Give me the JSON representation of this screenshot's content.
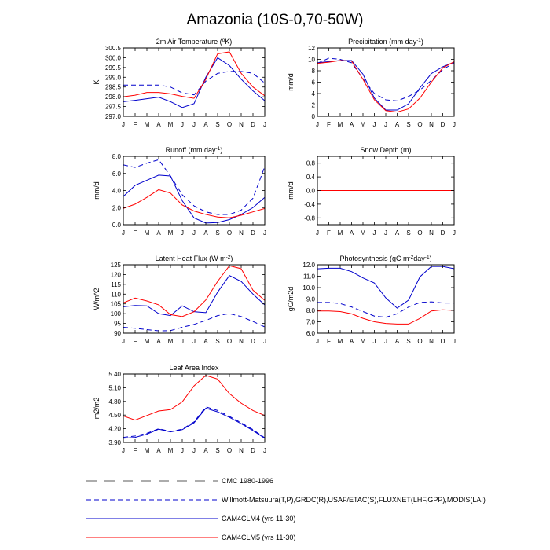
{
  "figure": {
    "title": "Amazonia (10S-0,70-50W)",
    "months": [
      "J",
      "F",
      "M",
      "A",
      "M",
      "J",
      "J",
      "A",
      "S",
      "O",
      "N",
      "D",
      "J"
    ]
  },
  "legend": [
    {
      "label": "CMC 1980-1996",
      "color": "#5a5a5a",
      "dash": "long-dash"
    },
    {
      "label": "Willmott-Matsuura(T,P),GRDC(R),USAF/ETAC(S),FLUXNET(LHF,GPP),MODIS(LAI)",
      "color": "#0000cc",
      "dash": "dash"
    },
    {
      "label": "CAM4CLM4 (yrs 11-30)",
      "color": "#0000cc",
      "dash": "solid"
    },
    {
      "label": "CAM4CLM5 (yrs 11-30)",
      "color": "#ff0000",
      "dash": "solid"
    }
  ],
  "chart_data": [
    {
      "id": "tsa",
      "type": "line",
      "title": "2m Air Temperature (°K)",
      "ylabel": "K",
      "ylim": [
        297.0,
        300.5
      ],
      "yticks": [
        297.0,
        297.5,
        298.0,
        298.5,
        299.0,
        299.5,
        300.0,
        300.5
      ],
      "ytick_labels": [
        "297.0",
        "297.5",
        "298.0",
        "298.5",
        "299.0",
        "299.5",
        "300.0",
        "300.5"
      ],
      "x": [
        "J",
        "F",
        "M",
        "A",
        "M",
        "J",
        "J",
        "A",
        "S",
        "O",
        "N",
        "D",
        "J"
      ],
      "series": [
        {
          "name": "Willmott-Matsuura(T,P),GRDC(R),USAF/ETAC(S),FLUXNET(LHF,GPP),MODIS(LAI)",
          "color": "#0000cc",
          "dash": "dash",
          "values": [
            298.6,
            298.6,
            298.6,
            298.6,
            298.5,
            298.2,
            298.1,
            298.8,
            299.2,
            299.3,
            299.3,
            299.2,
            298.7
          ]
        },
        {
          "name": "CAM4CLM4 (yrs 11-30)",
          "color": "#0000cc",
          "dash": "solid",
          "values": [
            297.75,
            297.82,
            297.9,
            297.98,
            297.75,
            297.45,
            297.65,
            299.0,
            300.0,
            299.6,
            298.9,
            298.3,
            297.8
          ]
        },
        {
          "name": "CAM4CLM5 (yrs 11-30)",
          "color": "#ff0000",
          "dash": "solid",
          "values": [
            298.0,
            298.08,
            298.22,
            298.22,
            298.15,
            298.02,
            297.92,
            298.9,
            300.2,
            300.3,
            299.2,
            298.5,
            298.05
          ]
        }
      ]
    },
    {
      "id": "precip",
      "type": "line",
      "title": "Precipitation (mm day-1)",
      "ylabel": "mm/d",
      "ylim": [
        0,
        12
      ],
      "yticks": [
        0,
        2,
        4,
        6,
        8,
        10,
        12
      ],
      "ytick_labels": [
        "0",
        "2",
        "4",
        "6",
        "8",
        "10",
        "12"
      ],
      "x": [
        "J",
        "F",
        "M",
        "A",
        "M",
        "J",
        "J",
        "A",
        "S",
        "O",
        "N",
        "D",
        "J"
      ],
      "series": [
        {
          "name": "Willmott-Matsuura(T,P),GRDC(R),USAF/ETAC(S),FLUXNET(LHF,GPP),MODIS(LAI)",
          "color": "#0000cc",
          "dash": "dash",
          "values": [
            9.3,
            10.2,
            10.0,
            9.4,
            6.6,
            4.0,
            2.9,
            2.7,
            3.5,
            4.6,
            6.3,
            8.2,
            9.4
          ]
        },
        {
          "name": "CAM4CLM4 (yrs 11-30)",
          "color": "#0000cc",
          "dash": "solid",
          "values": [
            9.4,
            9.6,
            9.8,
            9.8,
            7.4,
            3.2,
            1.1,
            1.1,
            2.2,
            5.0,
            7.5,
            8.7,
            9.5
          ]
        },
        {
          "name": "CAM4CLM5 (yrs 11-30)",
          "color": "#ff0000",
          "dash": "solid",
          "values": [
            9.3,
            9.5,
            9.8,
            9.7,
            6.5,
            2.9,
            1.0,
            0.75,
            1.3,
            3.2,
            6.0,
            8.5,
            9.6
          ]
        }
      ]
    },
    {
      "id": "runoff",
      "type": "line",
      "title": "Runoff (mm day-1)",
      "ylabel": "mm/d",
      "ylim": [
        0,
        8
      ],
      "yticks": [
        0,
        2,
        4,
        6,
        8
      ],
      "ytick_labels": [
        "0.0",
        "2.0",
        "4.0",
        "6.0",
        "8.0"
      ],
      "x": [
        "J",
        "F",
        "M",
        "A",
        "M",
        "J",
        "J",
        "A",
        "S",
        "O",
        "N",
        "D",
        "J"
      ],
      "series": [
        {
          "name": "Willmott-Matsuura(T,P),GRDC(R),USAF/ETAC(S),FLUXNET(LHF,GPP),MODIS(LAI)",
          "color": "#0000cc",
          "dash": "dash",
          "values": [
            7.0,
            6.7,
            7.2,
            7.6,
            5.7,
            3.5,
            2.2,
            1.5,
            1.2,
            1.2,
            1.7,
            3.1,
            6.8
          ]
        },
        {
          "name": "CAM4CLM4 (yrs 11-30)",
          "color": "#0000cc",
          "dash": "solid",
          "values": [
            3.3,
            4.6,
            5.2,
            5.8,
            5.7,
            2.8,
            0.8,
            0.2,
            0.25,
            0.6,
            1.2,
            2.0,
            3.2
          ]
        },
        {
          "name": "CAM4CLM5 (yrs 11-30)",
          "color": "#ff0000",
          "dash": "solid",
          "values": [
            1.9,
            2.4,
            3.2,
            4.1,
            3.7,
            2.3,
            1.6,
            1.2,
            0.9,
            0.8,
            1.1,
            1.5,
            1.9
          ]
        }
      ]
    },
    {
      "id": "snowdepth",
      "type": "line",
      "title": "Snow Depth (m)",
      "ylabel": "mm/d",
      "ylim": [
        -1.0,
        1.0
      ],
      "yticks": [
        -0.8,
        -0.4,
        0.0,
        0.4,
        0.8
      ],
      "ytick_labels": [
        "-0.8",
        "-0.4",
        "0.0",
        "0.4",
        "0.8"
      ],
      "x": [
        "J",
        "F",
        "M",
        "A",
        "M",
        "J",
        "J",
        "A",
        "S",
        "O",
        "N",
        "D",
        "J"
      ],
      "series": [
        {
          "name": "CMC 1980-1996",
          "color": "#5a5a5a",
          "dash": "long-dash",
          "values": [
            0,
            0,
            0,
            0,
            0,
            0,
            0,
            0,
            0,
            0,
            0,
            0,
            0
          ]
        },
        {
          "name": "CAM4CLM4 (yrs 11-30)",
          "color": "#0000cc",
          "dash": "solid",
          "values": [
            0,
            0,
            0,
            0,
            0,
            0,
            0,
            0,
            0,
            0,
            0,
            0,
            0
          ]
        },
        {
          "name": "CAM4CLM5 (yrs 11-30)",
          "color": "#ff0000",
          "dash": "solid",
          "values": [
            0,
            0,
            0,
            0,
            0,
            0,
            0,
            0,
            0,
            0,
            0,
            0,
            0
          ]
        }
      ]
    },
    {
      "id": "lhf",
      "type": "line",
      "title": "Latent Heat Flux (W m-2)",
      "ylabel": "W/m^2",
      "ylim": [
        90,
        125
      ],
      "yticks": [
        90,
        95,
        100,
        105,
        110,
        115,
        120,
        125
      ],
      "ytick_labels": [
        "90",
        "95",
        "100",
        "105",
        "110",
        "115",
        "120",
        "125"
      ],
      "x": [
        "J",
        "F",
        "M",
        "A",
        "M",
        "J",
        "J",
        "A",
        "S",
        "O",
        "N",
        "D",
        "J"
      ],
      "series": [
        {
          "name": "Willmott-Matsuura(T,P),GRDC(R),USAF/ETAC(S),FLUXNET(LHF,GPP),MODIS(LAI)",
          "color": "#0000cc",
          "dash": "dash",
          "values": [
            93,
            92.5,
            91.8,
            91.2,
            91.3,
            93,
            94.5,
            96.5,
            99,
            100,
            98.5,
            96,
            93.2
          ]
        },
        {
          "name": "CAM4CLM4 (yrs 11-30)",
          "color": "#0000cc",
          "dash": "solid",
          "values": [
            103.5,
            104.2,
            104,
            100,
            99,
            104,
            101,
            100.5,
            111,
            119.5,
            116.5,
            110,
            104.5
          ]
        },
        {
          "name": "CAM4CLM5 (yrs 11-30)",
          "color": "#ff0000",
          "dash": "solid",
          "values": [
            105.5,
            108,
            106.5,
            104.5,
            99.5,
            98.5,
            101,
            107,
            116.5,
            124.5,
            123,
            112,
            106.8
          ]
        }
      ]
    },
    {
      "id": "gpp",
      "type": "line",
      "title": "Photosynthesis (gC m-2day-1)",
      "ylabel": "gC/m2d",
      "ylim": [
        6.0,
        12.0
      ],
      "yticks": [
        6,
        7,
        8,
        9,
        10,
        11,
        12
      ],
      "ytick_labels": [
        "6.0",
        "7.0",
        "8.0",
        "9.0",
        "10.0",
        "11.0",
        "12.0"
      ],
      "x": [
        "J",
        "F",
        "M",
        "A",
        "M",
        "J",
        "J",
        "A",
        "S",
        "O",
        "N",
        "D",
        "J"
      ],
      "series": [
        {
          "name": "Willmott-Matsuura(T,P),GRDC(R),USAF/ETAC(S),FLUXNET(LHF,GPP),MODIS(LAI)",
          "color": "#0000cc",
          "dash": "dash",
          "values": [
            8.7,
            8.7,
            8.6,
            8.3,
            7.9,
            7.5,
            7.4,
            7.7,
            8.3,
            8.7,
            8.75,
            8.65,
            8.65
          ]
        },
        {
          "name": "CAM4CLM4 (yrs 11-30)",
          "color": "#0000cc",
          "dash": "solid",
          "values": [
            11.65,
            11.7,
            11.7,
            11.4,
            10.85,
            10.4,
            9.1,
            8.2,
            8.9,
            10.95,
            11.85,
            11.85,
            11.65
          ]
        },
        {
          "name": "CAM4CLM5 (yrs 11-30)",
          "color": "#ff0000",
          "dash": "solid",
          "values": [
            7.95,
            7.95,
            7.9,
            7.7,
            7.3,
            7.0,
            6.85,
            6.8,
            6.8,
            7.3,
            7.95,
            8.05,
            8.0
          ]
        }
      ]
    },
    {
      "id": "lai",
      "type": "line",
      "title": "Leaf Area Index",
      "ylabel": "m2/m2",
      "ylim": [
        3.9,
        5.4
      ],
      "yticks": [
        3.9,
        4.2,
        4.5,
        4.8,
        5.1,
        5.4
      ],
      "ytick_labels": [
        "3.90",
        "4.20",
        "4.50",
        "4.80",
        "5.10",
        "5.40"
      ],
      "x": [
        "J",
        "F",
        "M",
        "A",
        "M",
        "J",
        "J",
        "A",
        "S",
        "O",
        "N",
        "D",
        "J"
      ],
      "series": [
        {
          "name": "Willmott-Matsuura(T,P),GRDC(R),USAF/ETAC(S),FLUXNET(LHF,GPP),MODIS(LAI)",
          "color": "#0000cc",
          "dash": "dash",
          "values": [
            4.01,
            4.04,
            4.1,
            4.2,
            4.14,
            4.19,
            4.35,
            4.68,
            4.6,
            4.47,
            4.33,
            4.18,
            4.0
          ]
        },
        {
          "name": "CAM4CLM4 (yrs 11-30)",
          "color": "#0000cc",
          "dash": "solid",
          "values": [
            3.99,
            4.01,
            4.08,
            4.19,
            4.13,
            4.18,
            4.33,
            4.65,
            4.57,
            4.45,
            4.31,
            4.16,
            3.99
          ]
        },
        {
          "name": "CAM4CLM5 (yrs 11-30)",
          "color": "#ff0000",
          "dash": "solid",
          "values": [
            4.48,
            4.39,
            4.49,
            4.59,
            4.62,
            4.79,
            5.14,
            5.37,
            5.29,
            4.97,
            4.76,
            4.6,
            4.49
          ]
        }
      ]
    }
  ]
}
